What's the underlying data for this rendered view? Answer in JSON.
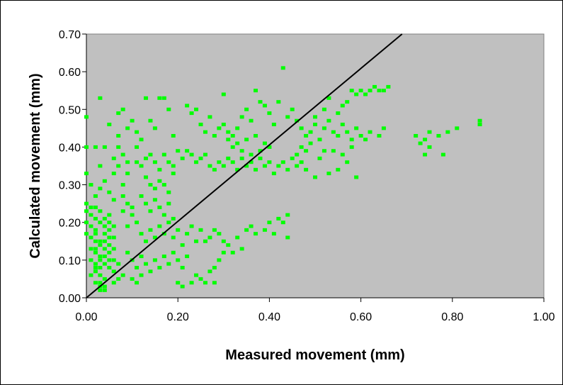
{
  "chart_data": {
    "type": "scatter",
    "title": "",
    "xlabel": "Measured movement (mm)",
    "ylabel": "Calculated movement (mm)",
    "xlim": [
      0,
      1.0
    ],
    "ylim": [
      0,
      0.7
    ],
    "x_ticks": [
      "0.00",
      "0.20",
      "0.40",
      "0.60",
      "0.80",
      "1.00"
    ],
    "y_ticks": [
      "0.00",
      "0.10",
      "0.20",
      "0.30",
      "0.40",
      "0.50",
      "0.60",
      "0.70"
    ],
    "grid": false,
    "legend": "none",
    "marker": "square",
    "colors": {
      "plot_bg": "#c0c0c0",
      "points": "#00ff00",
      "line": "#000000"
    },
    "reference_line": {
      "x": [
        0,
        0.69
      ],
      "y": [
        0,
        0.7
      ]
    },
    "series": [
      {
        "points": [
          [
            0.0,
            0.48
          ],
          [
            0.0,
            0.4
          ],
          [
            0.0,
            0.33
          ],
          [
            0.01,
            0.3
          ],
          [
            0.0,
            0.25
          ],
          [
            0.01,
            0.24
          ],
          [
            0.0,
            0.23
          ],
          [
            0.01,
            0.22
          ],
          [
            0.02,
            0.21
          ],
          [
            0.0,
            0.2
          ],
          [
            0.01,
            0.19
          ],
          [
            0.02,
            0.18
          ],
          [
            0.0,
            0.17
          ],
          [
            0.01,
            0.16
          ],
          [
            0.02,
            0.15
          ],
          [
            0.03,
            0.14
          ],
          [
            0.01,
            0.13
          ],
          [
            0.02,
            0.12
          ],
          [
            0.03,
            0.11
          ],
          [
            0.01,
            0.1
          ],
          [
            0.02,
            0.09
          ],
          [
            0.03,
            0.08
          ],
          [
            0.02,
            0.07
          ],
          [
            0.03,
            0.06
          ],
          [
            0.04,
            0.05
          ],
          [
            0.03,
            0.04
          ],
          [
            0.04,
            0.03
          ],
          [
            0.03,
            0.02
          ],
          [
            0.05,
            0.22
          ],
          [
            0.04,
            0.21
          ],
          [
            0.05,
            0.2
          ],
          [
            0.04,
            0.19
          ],
          [
            0.05,
            0.18
          ],
          [
            0.04,
            0.17
          ],
          [
            0.05,
            0.16
          ],
          [
            0.04,
            0.15
          ],
          [
            0.05,
            0.14
          ],
          [
            0.04,
            0.13
          ],
          [
            0.05,
            0.12
          ],
          [
            0.04,
            0.11
          ],
          [
            0.05,
            0.1
          ],
          [
            0.04,
            0.09
          ],
          [
            0.05,
            0.08
          ],
          [
            0.06,
            0.07
          ],
          [
            0.02,
            0.24
          ],
          [
            0.03,
            0.23
          ],
          [
            0.03,
            0.2
          ],
          [
            0.02,
            0.17
          ],
          [
            0.03,
            0.15
          ],
          [
            0.02,
            0.13
          ],
          [
            0.03,
            0.1
          ],
          [
            0.02,
            0.08
          ],
          [
            0.01,
            0.06
          ],
          [
            0.06,
            0.19
          ],
          [
            0.06,
            0.16
          ],
          [
            0.06,
            0.13
          ],
          [
            0.06,
            0.1
          ],
          [
            0.07,
            0.09
          ],
          [
            0.07,
            0.05
          ],
          [
            0.02,
            0.27
          ],
          [
            0.03,
            0.29
          ],
          [
            0.05,
            0.28
          ],
          [
            0.06,
            0.26
          ],
          [
            0.04,
            0.31
          ],
          [
            0.06,
            0.33
          ],
          [
            0.03,
            0.35
          ],
          [
            0.06,
            0.37
          ],
          [
            0.03,
            0.53
          ],
          [
            0.05,
            0.46
          ],
          [
            0.07,
            0.49
          ],
          [
            0.08,
            0.5
          ],
          [
            0.02,
            0.4
          ],
          [
            0.04,
            0.4
          ],
          [
            0.07,
            0.4
          ],
          [
            0.08,
            0.38
          ],
          [
            0.07,
            0.35
          ],
          [
            0.09,
            0.36
          ],
          [
            0.08,
            0.3
          ],
          [
            0.09,
            0.33
          ],
          [
            0.08,
            0.27
          ],
          [
            0.09,
            0.25
          ],
          [
            0.08,
            0.23
          ],
          [
            0.1,
            0.22
          ],
          [
            0.09,
            0.19
          ],
          [
            0.1,
            0.24
          ],
          [
            0.11,
            0.4
          ],
          [
            0.12,
            0.42
          ],
          [
            0.13,
            0.53
          ],
          [
            0.14,
            0.47
          ],
          [
            0.15,
            0.45
          ],
          [
            0.16,
            0.53
          ],
          [
            0.17,
            0.53
          ],
          [
            0.18,
            0.5
          ],
          [
            0.19,
            0.43
          ],
          [
            0.11,
            0.36
          ],
          [
            0.12,
            0.35
          ],
          [
            0.13,
            0.37
          ],
          [
            0.14,
            0.38
          ],
          [
            0.15,
            0.36
          ],
          [
            0.16,
            0.34
          ],
          [
            0.17,
            0.38
          ],
          [
            0.18,
            0.36
          ],
          [
            0.19,
            0.35
          ],
          [
            0.2,
            0.39
          ],
          [
            0.21,
            0.37
          ],
          [
            0.22,
            0.39
          ],
          [
            0.23,
            0.38
          ],
          [
            0.24,
            0.36
          ],
          [
            0.25,
            0.37
          ],
          [
            0.26,
            0.38
          ],
          [
            0.13,
            0.32
          ],
          [
            0.14,
            0.3
          ],
          [
            0.15,
            0.29
          ],
          [
            0.16,
            0.31
          ],
          [
            0.17,
            0.3
          ],
          [
            0.18,
            0.28
          ],
          [
            0.19,
            0.33
          ],
          [
            0.12,
            0.27
          ],
          [
            0.13,
            0.25
          ],
          [
            0.14,
            0.23
          ],
          [
            0.15,
            0.26
          ],
          [
            0.16,
            0.24
          ],
          [
            0.17,
            0.22
          ],
          [
            0.18,
            0.25
          ],
          [
            0.19,
            0.21
          ],
          [
            0.11,
            0.2
          ],
          [
            0.12,
            0.17
          ],
          [
            0.13,
            0.15
          ],
          [
            0.14,
            0.18
          ],
          [
            0.15,
            0.16
          ],
          [
            0.16,
            0.19
          ],
          [
            0.17,
            0.17
          ],
          [
            0.18,
            0.2
          ],
          [
            0.19,
            0.16
          ],
          [
            0.2,
            0.18
          ],
          [
            0.21,
            0.14
          ],
          [
            0.22,
            0.17
          ],
          [
            0.23,
            0.19
          ],
          [
            0.24,
            0.15
          ],
          [
            0.25,
            0.18
          ],
          [
            0.09,
            0.12
          ],
          [
            0.1,
            0.1
          ],
          [
            0.11,
            0.08
          ],
          [
            0.12,
            0.11
          ],
          [
            0.13,
            0.09
          ],
          [
            0.14,
            0.07
          ],
          [
            0.15,
            0.1
          ],
          [
            0.16,
            0.08
          ],
          [
            0.17,
            0.11
          ],
          [
            0.18,
            0.09
          ],
          [
            0.19,
            0.12
          ],
          [
            0.2,
            0.1
          ],
          [
            0.21,
            0.08
          ],
          [
            0.22,
            0.11
          ],
          [
            0.23,
            0.04
          ],
          [
            0.24,
            0.06
          ],
          [
            0.25,
            0.05
          ],
          [
            0.26,
            0.04
          ],
          [
            0.27,
            0.07
          ],
          [
            0.28,
            0.08
          ],
          [
            0.29,
            0.1
          ],
          [
            0.3,
            0.12
          ],
          [
            0.32,
            0.12
          ],
          [
            0.34,
            0.13
          ],
          [
            0.2,
            0.04
          ],
          [
            0.21,
            0.03
          ],
          [
            0.28,
            0.04
          ],
          [
            0.26,
            0.15
          ],
          [
            0.27,
            0.16
          ],
          [
            0.28,
            0.18
          ],
          [
            0.29,
            0.17
          ],
          [
            0.3,
            0.15
          ],
          [
            0.31,
            0.14
          ],
          [
            0.33,
            0.16
          ],
          [
            0.35,
            0.18
          ],
          [
            0.36,
            0.19
          ],
          [
            0.37,
            0.17
          ],
          [
            0.39,
            0.18
          ],
          [
            0.41,
            0.17
          ],
          [
            0.43,
            0.2
          ],
          [
            0.44,
            0.16
          ],
          [
            0.44,
            0.22
          ],
          [
            0.42,
            0.21
          ],
          [
            0.4,
            0.2
          ],
          [
            0.22,
            0.51
          ],
          [
            0.23,
            0.49
          ],
          [
            0.24,
            0.5
          ],
          [
            0.25,
            0.46
          ],
          [
            0.26,
            0.44
          ],
          [
            0.27,
            0.48
          ],
          [
            0.28,
            0.43
          ],
          [
            0.29,
            0.45
          ],
          [
            0.3,
            0.46
          ],
          [
            0.31,
            0.44
          ],
          [
            0.32,
            0.43
          ],
          [
            0.33,
            0.45
          ],
          [
            0.3,
            0.54
          ],
          [
            0.31,
            0.42
          ],
          [
            0.32,
            0.4
          ],
          [
            0.33,
            0.41
          ],
          [
            0.34,
            0.39
          ],
          [
            0.35,
            0.42
          ],
          [
            0.36,
            0.38
          ],
          [
            0.37,
            0.43
          ],
          [
            0.38,
            0.39
          ],
          [
            0.39,
            0.41
          ],
          [
            0.4,
            0.4
          ],
          [
            0.27,
            0.35
          ],
          [
            0.28,
            0.34
          ],
          [
            0.29,
            0.36
          ],
          [
            0.3,
            0.35
          ],
          [
            0.31,
            0.37
          ],
          [
            0.32,
            0.36
          ],
          [
            0.33,
            0.34
          ],
          [
            0.34,
            0.37
          ],
          [
            0.35,
            0.35
          ],
          [
            0.36,
            0.36
          ],
          [
            0.37,
            0.34
          ],
          [
            0.38,
            0.37
          ],
          [
            0.39,
            0.35
          ],
          [
            0.4,
            0.36
          ],
          [
            0.41,
            0.33
          ],
          [
            0.42,
            0.35
          ],
          [
            0.43,
            0.36
          ],
          [
            0.44,
            0.34
          ],
          [
            0.45,
            0.37
          ],
          [
            0.46,
            0.35
          ],
          [
            0.47,
            0.36
          ],
          [
            0.48,
            0.34
          ],
          [
            0.34,
            0.48
          ],
          [
            0.35,
            0.5
          ],
          [
            0.36,
            0.47
          ],
          [
            0.37,
            0.55
          ],
          [
            0.38,
            0.52
          ],
          [
            0.39,
            0.51
          ],
          [
            0.4,
            0.49
          ],
          [
            0.41,
            0.46
          ],
          [
            0.42,
            0.52
          ],
          [
            0.43,
            0.61
          ],
          [
            0.44,
            0.48
          ],
          [
            0.45,
            0.5
          ],
          [
            0.46,
            0.47
          ],
          [
            0.47,
            0.45
          ],
          [
            0.48,
            0.43
          ],
          [
            0.49,
            0.44
          ],
          [
            0.5,
            0.46
          ],
          [
            0.51,
            0.42
          ],
          [
            0.52,
            0.45
          ],
          [
            0.53,
            0.47
          ],
          [
            0.54,
            0.44
          ],
          [
            0.55,
            0.43
          ],
          [
            0.56,
            0.46
          ],
          [
            0.57,
            0.44
          ],
          [
            0.58,
            0.42
          ],
          [
            0.59,
            0.45
          ],
          [
            0.6,
            0.43
          ],
          [
            0.61,
            0.42
          ],
          [
            0.62,
            0.44
          ],
          [
            0.64,
            0.43
          ],
          [
            0.65,
            0.45
          ],
          [
            0.5,
            0.48
          ],
          [
            0.52,
            0.5
          ],
          [
            0.53,
            0.53
          ],
          [
            0.55,
            0.49
          ],
          [
            0.56,
            0.51
          ],
          [
            0.57,
            0.52
          ],
          [
            0.58,
            0.55
          ],
          [
            0.59,
            0.54
          ],
          [
            0.6,
            0.55
          ],
          [
            0.61,
            0.54
          ],
          [
            0.62,
            0.55
          ],
          [
            0.63,
            0.56
          ],
          [
            0.64,
            0.55
          ],
          [
            0.65,
            0.55
          ],
          [
            0.66,
            0.56
          ],
          [
            0.54,
            0.39
          ],
          [
            0.56,
            0.38
          ],
          [
            0.58,
            0.4
          ],
          [
            0.57,
            0.36
          ],
          [
            0.55,
            0.34
          ],
          [
            0.59,
            0.32
          ],
          [
            0.53,
            0.33
          ],
          [
            0.5,
            0.32
          ],
          [
            0.46,
            0.38
          ],
          [
            0.47,
            0.4
          ],
          [
            0.49,
            0.41
          ],
          [
            0.48,
            0.39
          ],
          [
            0.51,
            0.37
          ],
          [
            0.52,
            0.39
          ],
          [
            0.74,
            0.42
          ],
          [
            0.73,
            0.41
          ],
          [
            0.75,
            0.4
          ],
          [
            0.74,
            0.38
          ],
          [
            0.75,
            0.44
          ],
          [
            0.77,
            0.43
          ],
          [
            0.79,
            0.44
          ],
          [
            0.81,
            0.45
          ],
          [
            0.86,
            0.46
          ],
          [
            0.86,
            0.47
          ],
          [
            0.78,
            0.38
          ],
          [
            0.72,
            0.43
          ],
          [
            0.07,
            0.43
          ],
          [
            0.09,
            0.45
          ],
          [
            0.1,
            0.47
          ],
          [
            0.11,
            0.44
          ],
          [
            0.02,
            0.04
          ],
          [
            0.04,
            0.02
          ],
          [
            0.03,
            0.03
          ],
          [
            0.06,
            0.04
          ],
          [
            0.08,
            0.06
          ],
          [
            0.1,
            0.05
          ],
          [
            0.12,
            0.06
          ],
          [
            0.11,
            0.04
          ]
        ]
      }
    ]
  }
}
